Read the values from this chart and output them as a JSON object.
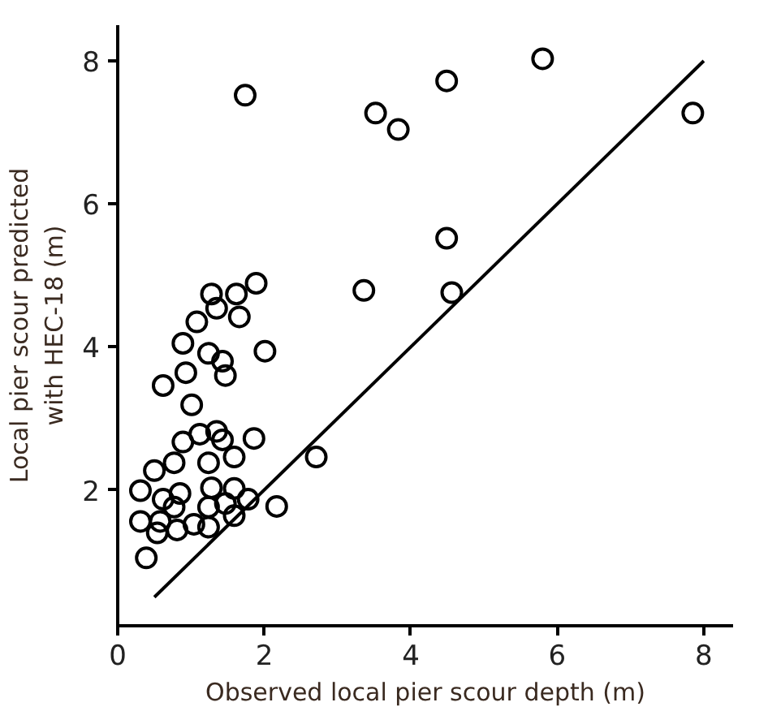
{
  "chart_data": {
    "type": "scatter",
    "xlabel": "Observed local pier scour depth (m)",
    "ylabel": "Local pier scour predicted\nwith HEC-18 (m)",
    "xlim": [
      0,
      8.4
    ],
    "ylim": [
      0.1,
      8.5
    ],
    "xticks": [
      0,
      2,
      4,
      6,
      8
    ],
    "yticks": [
      2,
      4,
      6,
      8
    ],
    "grid": false,
    "marker": "circle",
    "series": [
      {
        "color": "#000000",
        "x": [
          1.74,
          5.8,
          4.49,
          3.52,
          3.83,
          7.85,
          4.49,
          3.36,
          4.56,
          2.71,
          2.17,
          2.01,
          1.89,
          1.62,
          1.66,
          1.28,
          1.35,
          1.08,
          0.89,
          1.24,
          1.43,
          1.47,
          0.93,
          0.62,
          1.01,
          1.86,
          1.12,
          1.35,
          1.43,
          0.89,
          1.59,
          1.24,
          0.77,
          0.5,
          0.31,
          0.85,
          1.28,
          1.59,
          1.78,
          1.24,
          0.77,
          0.62,
          0.31,
          0.58,
          0.81,
          1.04,
          1.24,
          1.59,
          0.39,
          0.54,
          1.47
        ],
        "values": [
          7.52,
          8.03,
          7.72,
          7.27,
          7.04,
          7.27,
          5.52,
          4.79,
          4.76,
          2.46,
          1.77,
          3.94,
          4.89,
          4.74,
          4.42,
          4.74,
          4.54,
          4.35,
          4.05,
          3.91,
          3.8,
          3.6,
          3.64,
          3.46,
          3.19,
          2.72,
          2.78,
          2.82,
          2.7,
          2.67,
          2.46,
          2.38,
          2.38,
          2.27,
          1.99,
          1.95,
          2.03,
          2.02,
          1.87,
          1.76,
          1.76,
          1.87,
          1.56,
          1.56,
          1.44,
          1.52,
          1.48,
          1.64,
          1.05,
          1.4,
          1.81
        ]
      },
      {
        "type": "line",
        "color": "#000000",
        "x": [
          0.5,
          8
        ],
        "values": [
          0.5,
          8
        ],
        "marker": "none",
        "line_style": "solid"
      }
    ]
  }
}
